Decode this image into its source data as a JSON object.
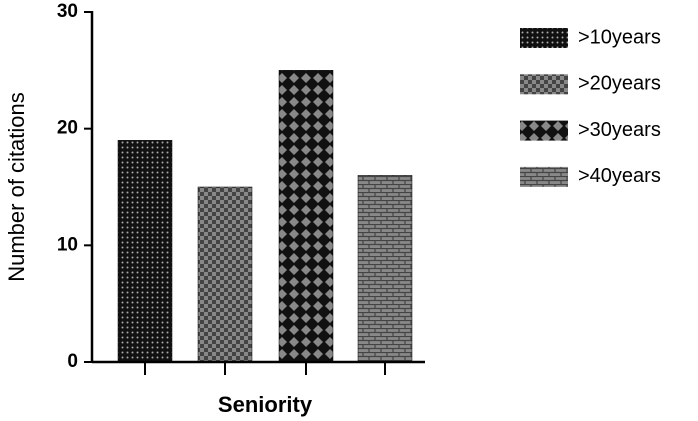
{
  "chart_data": {
    "type": "bar",
    "y_label": "Number of citations",
    "x_label": "Seniority",
    "categories": [
      ">10years",
      ">20years",
      ">30years",
      ">40years"
    ],
    "values": [
      19,
      15,
      25,
      16
    ],
    "patterns": [
      "dots",
      "checker",
      "diamond",
      "brick"
    ],
    "ylim": [
      0,
      30
    ],
    "yticks": [
      0,
      10,
      20,
      30
    ],
    "legend": "right",
    "grid": false
  }
}
